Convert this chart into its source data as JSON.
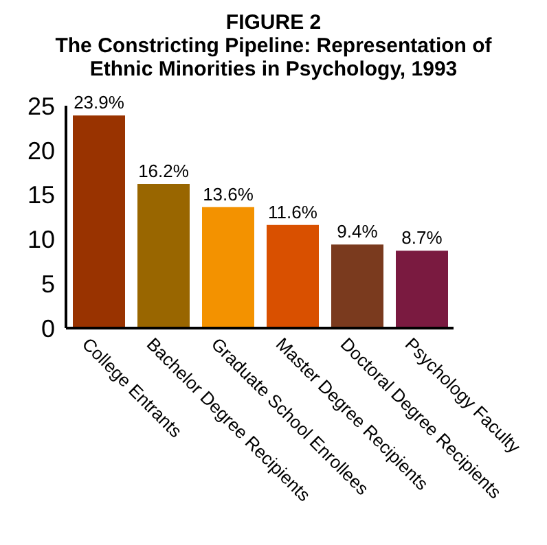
{
  "chart_data": {
    "type": "bar",
    "title": "FIGURE 2",
    "subtitle": "The Constricting Pipeline: Representation of Ethnic Minorities in Psychology, 1993",
    "categories": [
      "College Entrants",
      "Bachelor Degree Recipients",
      "Graduate School Enrollees",
      "Master Degree Recipients",
      "Doctoral Degree Recipients",
      "Psychology Faculty"
    ],
    "values": [
      23.9,
      16.2,
      13.6,
      11.6,
      9.4,
      8.7
    ],
    "colors": [
      "#993300",
      "#996600",
      "#f39200",
      "#d95000",
      "#7a3a1e",
      "#7a1a40"
    ],
    "value_labels": [
      "23.9%",
      "16.2%",
      "13.6%",
      "11.6%",
      "9.4%",
      "8.7%"
    ],
    "ylim": [
      0,
      25
    ],
    "yticks": [
      0,
      5,
      10,
      15,
      20,
      25
    ],
    "grid": false
  }
}
